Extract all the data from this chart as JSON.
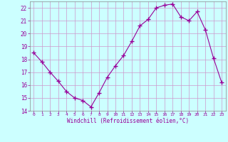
{
  "x": [
    0,
    1,
    2,
    3,
    4,
    5,
    6,
    7,
    8,
    9,
    10,
    11,
    12,
    13,
    14,
    15,
    16,
    17,
    18,
    19,
    20,
    21,
    22,
    23
  ],
  "y": [
    18.5,
    17.8,
    17.0,
    16.3,
    15.5,
    15.0,
    14.8,
    14.3,
    15.4,
    16.6,
    17.5,
    18.3,
    19.4,
    20.6,
    21.1,
    22.0,
    22.2,
    22.3,
    21.3,
    21.0,
    21.7,
    20.3,
    18.1,
    16.2
  ],
  "line_color": "#990099",
  "marker": "+",
  "marker_size": 4,
  "bg_color": "#ccffff",
  "grid_color": "#cc99cc",
  "axis_color": "#888888",
  "tick_color": "#990099",
  "xlabel": "Windchill (Refroidissement éolien,°C)",
  "xlim": [
    -0.5,
    23.5
  ],
  "ylim": [
    14,
    22.5
  ],
  "yticks": [
    14,
    15,
    16,
    17,
    18,
    19,
    20,
    21,
    22
  ],
  "xticks": [
    0,
    1,
    2,
    3,
    4,
    5,
    6,
    7,
    8,
    9,
    10,
    11,
    12,
    13,
    14,
    15,
    16,
    17,
    18,
    19,
    20,
    21,
    22,
    23
  ]
}
